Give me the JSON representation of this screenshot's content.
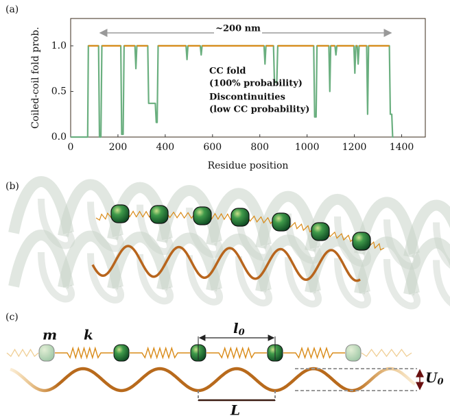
{
  "chart_data": {
    "type": "line",
    "xlabel": "Residue position",
    "ylabel": "Coiled-coil fold prob.",
    "x": [
      0,
      72,
      75,
      118,
      122,
      128,
      132,
      212,
      216,
      222,
      226,
      272,
      276,
      280,
      326,
      330,
      358,
      362,
      366,
      370,
      488,
      492,
      496,
      548,
      552,
      556,
      818,
      822,
      826,
      858,
      862,
      872,
      876,
      1028,
      1032,
      1038,
      1042,
      1092,
      1096,
      1100,
      1118,
      1122,
      1126,
      1198,
      1202,
      1206,
      1212,
      1216,
      1220,
      1252,
      1256,
      1260,
      1348,
      1352,
      1358,
      1362,
      1365
    ],
    "series": [
      {
        "name": "Discontinuities",
        "color": "#6aaf7f",
        "values": [
          0,
          0,
          1,
          1,
          0,
          0,
          1,
          1,
          0.03,
          0.03,
          1,
          1,
          0.75,
          1,
          1,
          0.37,
          0.37,
          0.16,
          0.16,
          1,
          1,
          0.85,
          1,
          1,
          0.9,
          1,
          1,
          0.8,
          1,
          1,
          0.6,
          0.6,
          1,
          1,
          0.22,
          0.22,
          1,
          1,
          0.5,
          1,
          1,
          0.9,
          1,
          1,
          0.7,
          1,
          1,
          0.8,
          1,
          1,
          0.25,
          1,
          1,
          0.25,
          0.25,
          0,
          0
        ]
      },
      {
        "name": "CC fold",
        "color": "#d98a17",
        "values": [
          null,
          null,
          1,
          1,
          null,
          null,
          1,
          1,
          null,
          null,
          1,
          1,
          null,
          1,
          1,
          null,
          null,
          null,
          null,
          1,
          1,
          null,
          1,
          1,
          null,
          1,
          1,
          null,
          1,
          1,
          null,
          null,
          1,
          1,
          null,
          null,
          1,
          1,
          null,
          1,
          1,
          null,
          1,
          1,
          null,
          1,
          1,
          null,
          1,
          1,
          null,
          1,
          1,
          null,
          null,
          null,
          null
        ]
      }
    ],
    "annotations": [
      "~200 nm",
      "(100% probability)",
      "(low CC probability)"
    ],
    "xlim": [
      0,
      1500
    ],
    "xticks": [
      0,
      200,
      400,
      600,
      800,
      1000,
      1200,
      1400
    ],
    "ylim": [
      0,
      1.3
    ],
    "yticks": [
      {
        "value": 0,
        "label": "0.0"
      },
      0.5,
      {
        "value": 1,
        "label": "1.0"
      }
    ]
  },
  "figure": {
    "panels": [
      "(a)",
      "(b)",
      "(c)"
    ],
    "symbols": {
      "mass": "m",
      "stiffness": "k",
      "rest_length": {
        "base": "l",
        "sub": "0"
      },
      "period": "L",
      "barrier": {
        "base": "U",
        "sub": "0"
      }
    }
  }
}
